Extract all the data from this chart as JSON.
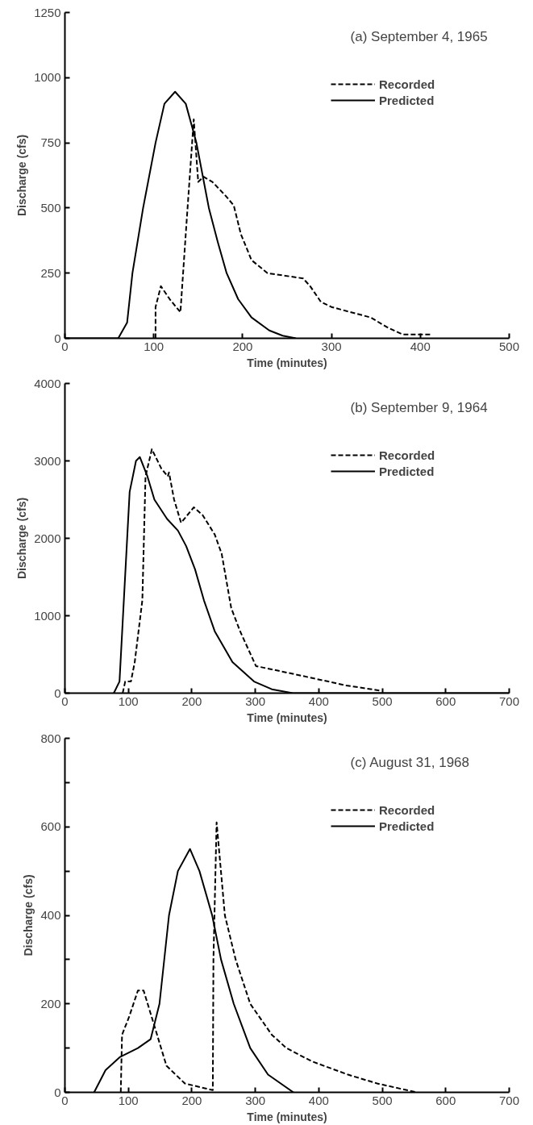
{
  "chart_data": [
    {
      "type": "line",
      "title": "(a) September 4, 1965",
      "xlabel": "Time (minutes)",
      "ylabel": "Discharge (cfs)",
      "xlim": [
        0,
        500
      ],
      "ylim": [
        0,
        1250
      ],
      "xticks": [
        0,
        100,
        200,
        300,
        400,
        500
      ],
      "yticks": [
        0,
        250,
        500,
        750,
        1000,
        1250
      ],
      "grid": false,
      "legend": "top right",
      "marker": "none",
      "series": [
        {
          "name": "Recorded",
          "color": "#000000",
          "line_style": "dashed",
          "x": [
            102,
            102,
            108,
            118,
            130,
            137,
            145,
            150,
            156,
            166,
            180,
            190,
            198,
            210,
            228,
            248,
            268,
            276,
            288,
            300,
            344,
            364,
            380,
            412
          ],
          "values": [
            0,
            120,
            200,
            150,
            100,
            450,
            840,
            600,
            620,
            600,
            550,
            510,
            400,
            300,
            250,
            240,
            230,
            200,
            140,
            120,
            80,
            40,
            15,
            15
          ]
        },
        {
          "name": "Predicted",
          "color": "#000000",
          "line_style": "solid",
          "x": [
            0,
            60,
            70,
            76,
            88,
            102,
            112,
            124,
            136,
            148,
            162,
            172,
            182,
            195,
            210,
            230,
            245,
            260
          ],
          "values": [
            0,
            0,
            60,
            250,
            500,
            750,
            900,
            946,
            900,
            750,
            500,
            370,
            250,
            150,
            80,
            30,
            10,
            0
          ]
        }
      ]
    },
    {
      "type": "line",
      "title": "(b) September 9, 1964",
      "xlabel": "Time (minutes)",
      "ylabel": "Discharge (cfs)",
      "xlim": [
        0,
        700
      ],
      "ylim": [
        0,
        4000
      ],
      "xticks": [
        0,
        100,
        200,
        300,
        400,
        500,
        600,
        700
      ],
      "yticks": [
        0,
        1000,
        2000,
        3000,
        4000
      ],
      "grid": false,
      "legend": "top right",
      "marker": "none",
      "series": [
        {
          "name": "Recorded",
          "color": "#000000",
          "line_style": "dashed",
          "x": [
            91,
            95,
            104,
            110,
            122,
            127,
            137,
            152,
            162,
            164,
            172,
            183,
            203,
            217,
            236,
            247,
            262,
            276,
            301,
            359,
            443,
            499
          ],
          "values": [
            0,
            150,
            150,
            400,
            1200,
            2800,
            3150,
            2900,
            2800,
            2850,
            2500,
            2200,
            2400,
            2300,
            2050,
            1800,
            1100,
            800,
            350,
            250,
            100,
            30
          ]
        },
        {
          "name": "Predicted",
          "color": "#000000",
          "line_style": "solid",
          "x": [
            77,
            86,
            102,
            112,
            118,
            130,
            141,
            161,
            178,
            191,
            205,
            219,
            236,
            264,
            298,
            326,
            359,
            700
          ],
          "values": [
            0,
            150,
            2600,
            3000,
            3050,
            2800,
            2500,
            2250,
            2100,
            1900,
            1600,
            1200,
            800,
            400,
            150,
            50,
            0,
            0
          ]
        }
      ]
    },
    {
      "type": "line",
      "title": "(c) August 31, 1968",
      "xlabel": "Time (minutes)",
      "ylabel": "Discharge (cfs)",
      "xlim": [
        0,
        700
      ],
      "ylim": [
        0,
        800
      ],
      "xticks": [
        0,
        100,
        200,
        300,
        400,
        500,
        600,
        700
      ],
      "yticks": [
        0,
        {
          "value": 100,
          "label": null
        },
        200,
        {
          "value": 300,
          "label": null
        },
        400,
        {
          "value": 500,
          "label": null
        },
        600,
        {
          "value": 700,
          "label": null
        },
        800
      ],
      "grid": false,
      "legend": "top right",
      "marker": "none",
      "series": [
        {
          "name": "Recorded",
          "color": "#000000",
          "line_style": "dashed",
          "x": [
            88,
            90,
            101,
            115,
            124,
            141,
            160,
            189,
            218,
            233,
            234,
            239,
            252,
            269,
            292,
            326,
            349,
            389,
            446,
            492,
            554
          ],
          "values": [
            0,
            130,
            170,
            230,
            230,
            150,
            60,
            20,
            10,
            5,
            300,
            610,
            400,
            300,
            200,
            130,
            100,
            70,
            40,
            20,
            0
          ]
        },
        {
          "name": "Predicted",
          "color": "#000000",
          "line_style": "solid",
          "x": [
            46,
            64,
            87,
            115,
            135,
            149,
            164,
            178,
            197,
            212,
            232,
            246,
            266,
            292,
            320,
            360
          ],
          "values": [
            0,
            50,
            80,
            100,
            120,
            200,
            400,
            500,
            550,
            500,
            400,
            300,
            200,
            100,
            40,
            0
          ]
        }
      ]
    }
  ]
}
